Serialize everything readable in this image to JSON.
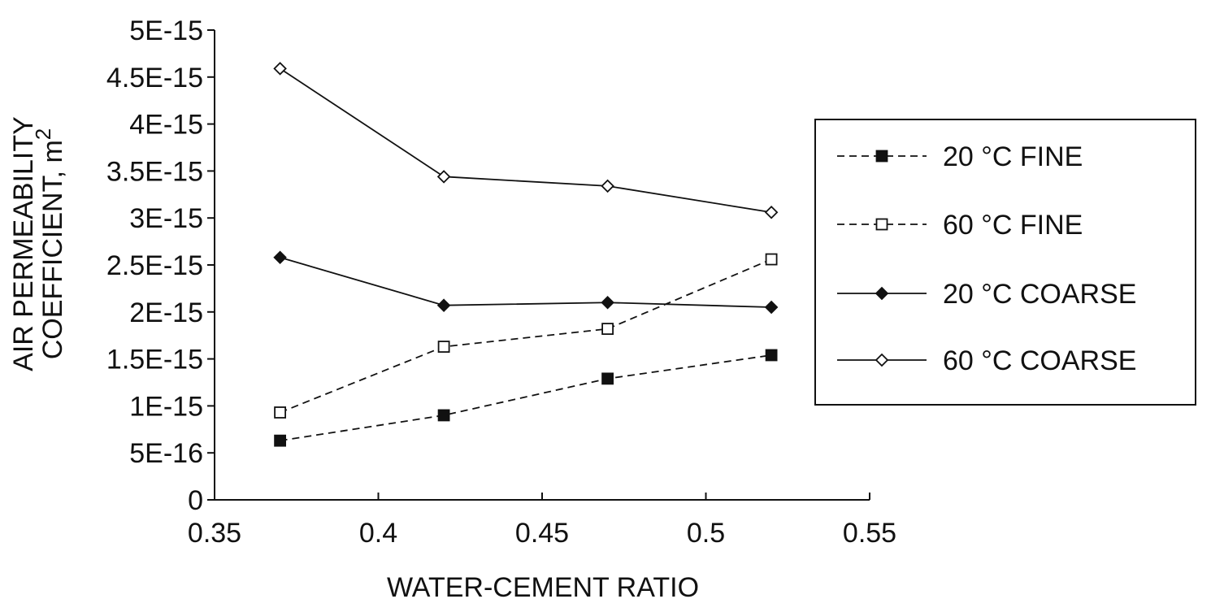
{
  "chart_data": {
    "type": "line",
    "xlabel": "WATER-CEMENT RATIO",
    "ylabel_line1": "AIR PERMEABILITY",
    "ylabel_line2": "COEFFICIENT, m",
    "ylabel_superscript": "2",
    "xlim": [
      0.35,
      0.55
    ],
    "ylim": [
      0,
      5e-15
    ],
    "x_ticks": [
      "0.35",
      "0.4",
      "0.45",
      "0.5",
      "0.55"
    ],
    "x_tick_values": [
      0.35,
      0.4,
      0.45,
      0.5,
      0.55
    ],
    "y_ticks": [
      "0",
      "5E-16",
      "1E-15",
      "1.5E-15",
      "2E-15",
      "2.5E-15",
      "3E-15",
      "3.5E-15",
      "4E-15",
      "4.5E-15",
      "5E-15"
    ],
    "y_tick_values": [
      0,
      5e-16,
      1e-15,
      1.5e-15,
      2e-15,
      2.5e-15,
      3e-15,
      3.5e-15,
      4e-15,
      4.5e-15,
      5e-15
    ],
    "grid": false,
    "legend_position": "right",
    "x": [
      0.37,
      0.42,
      0.47,
      0.52
    ],
    "series": [
      {
        "name": "20 °C FINE",
        "values": [
          6.3e-16,
          9e-16,
          1.29e-15,
          1.54e-15
        ],
        "marker": "square-filled",
        "dash": "dashed",
        "color": "#111111"
      },
      {
        "name": "60 °C FINE",
        "values": [
          9.3e-16,
          1.63e-15,
          1.82e-15,
          2.56e-15
        ],
        "marker": "square-open",
        "dash": "dashed",
        "color": "#111111"
      },
      {
        "name": "20 °C COARSE",
        "values": [
          2.58e-15,
          2.07e-15,
          2.1e-15,
          2.05e-15
        ],
        "marker": "diamond-filled",
        "dash": "solid",
        "color": "#111111"
      },
      {
        "name": "60 °C COARSE",
        "values": [
          4.59e-15,
          3.44e-15,
          3.34e-15,
          3.06e-15
        ],
        "marker": "diamond-open",
        "dash": "solid",
        "color": "#111111"
      }
    ]
  }
}
